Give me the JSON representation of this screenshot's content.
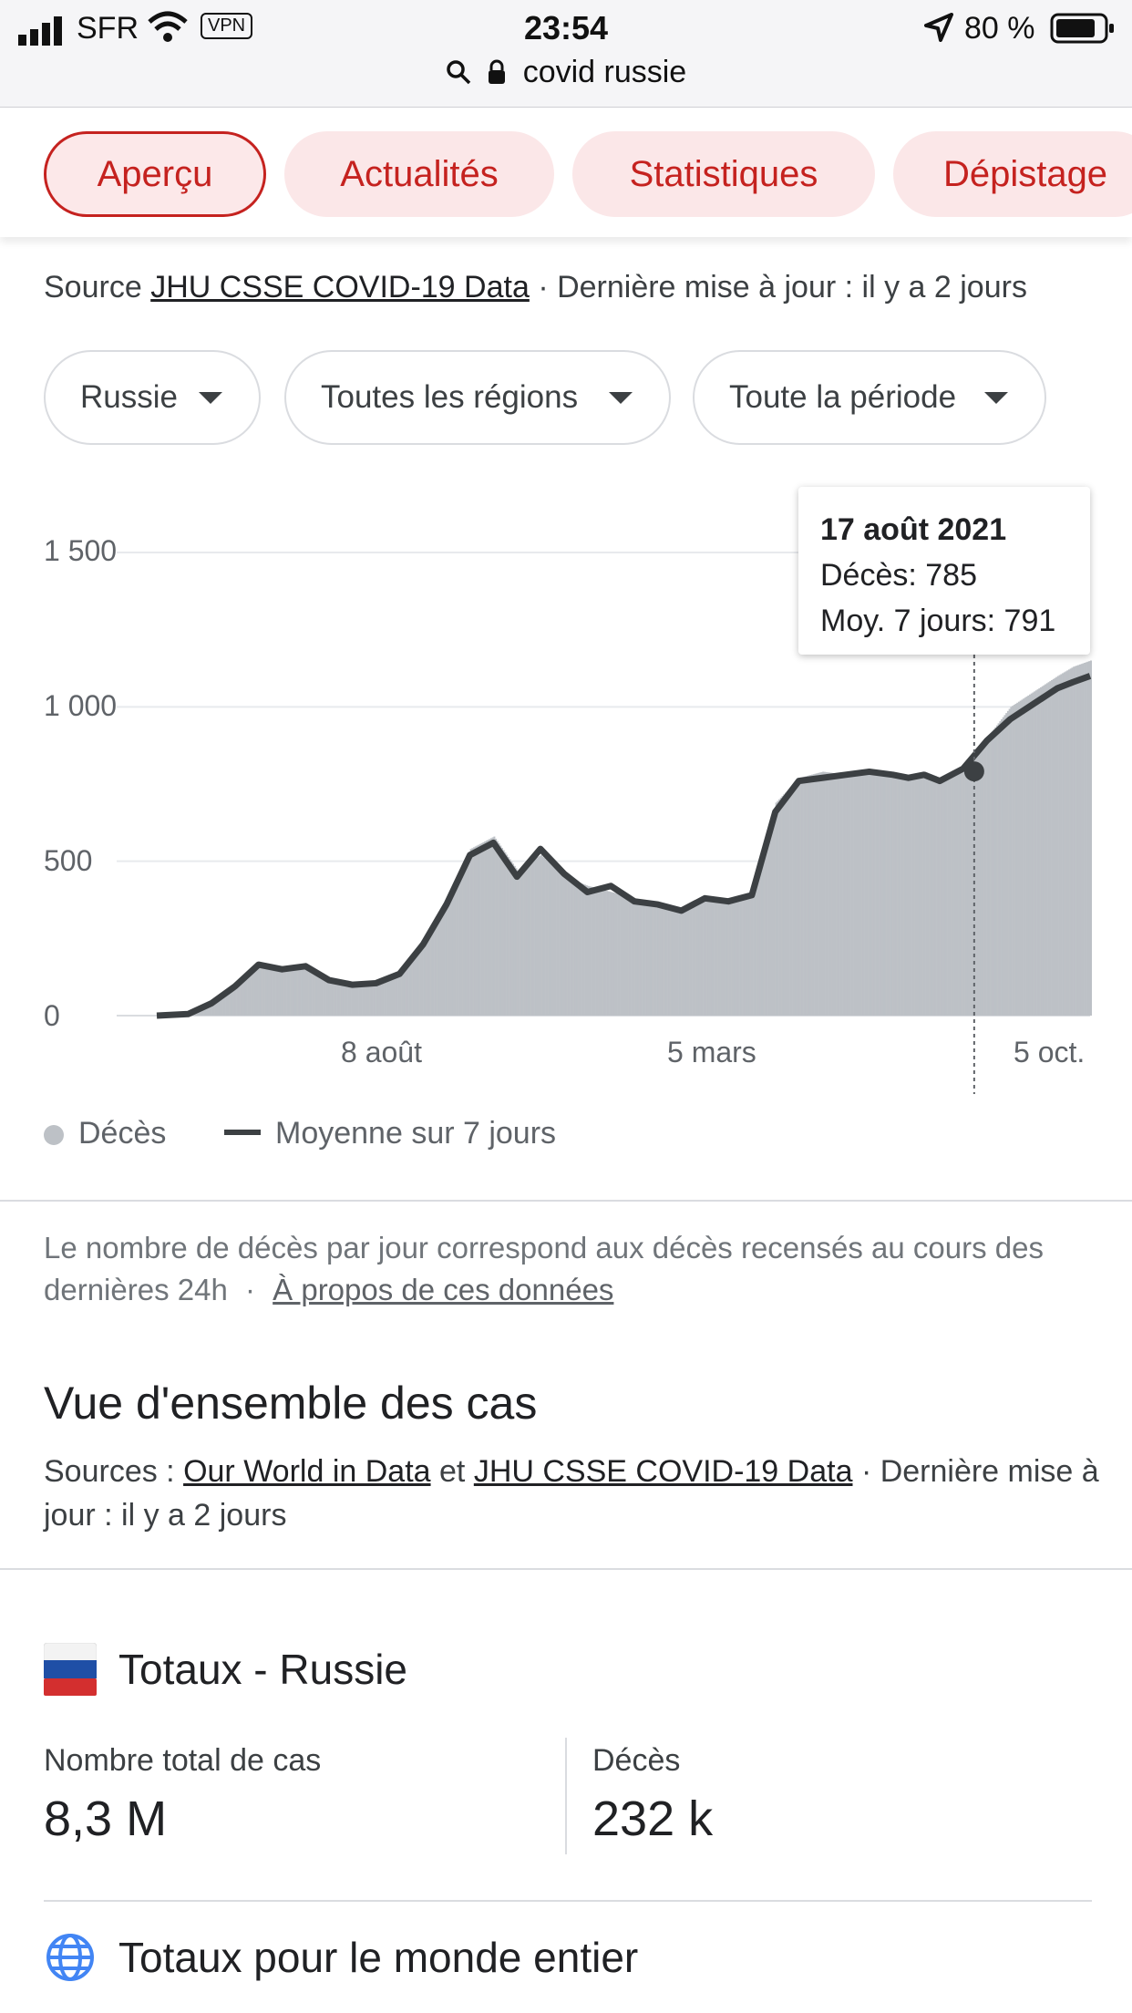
{
  "status_bar": {
    "carrier": "SFR",
    "vpn": "VPN",
    "time": "23:54",
    "battery": "80 %",
    "url": "covid russie"
  },
  "tabs": [
    "Aperçu",
    "Actualités",
    "Statistiques",
    "Dépistage"
  ],
  "source_line": {
    "prefix": "Source",
    "link": "JHU CSSE COVID-19 Data",
    "suffix": "· Dernière mise à jour : il y a 2 jours"
  },
  "filters": {
    "country": "Russie",
    "region": "Toutes les régions",
    "period": "Toute la période"
  },
  "tooltip": {
    "date": "17 août 2021",
    "deaths": "Décès: 785",
    "avg": "Moy. 7 jours: 791"
  },
  "legend": {
    "deaths": "Décès",
    "avg": "Moyenne sur 7 jours"
  },
  "chart_data": {
    "type": "area",
    "yticks": [
      "1 500",
      "1 000",
      "500",
      "0"
    ],
    "ylim": [
      0,
      1500
    ],
    "xticks": [
      "8 août",
      "5 mars",
      "5 oct."
    ],
    "x_range_days": [
      0,
      596
    ],
    "series": [
      {
        "name": "Décès",
        "style": "bars",
        "color": "#bdc1c6",
        "x": [
          0,
          20,
          35,
          50,
          65,
          80,
          95,
          110,
          125,
          140,
          155,
          170,
          185,
          200,
          215,
          230,
          245,
          260,
          275,
          290,
          305,
          320,
          335,
          350,
          365,
          380,
          395,
          410,
          425,
          440,
          455,
          470,
          480,
          490,
          500,
          515,
          530,
          545,
          560,
          575,
          585,
          596
        ],
        "y": [
          0,
          5,
          40,
          100,
          160,
          150,
          165,
          120,
          105,
          110,
          140,
          250,
          380,
          540,
          580,
          470,
          520,
          450,
          420,
          400,
          380,
          360,
          350,
          380,
          370,
          400,
          690,
          770,
          790,
          780,
          795,
          780,
          780,
          790,
          770,
          790,
          900,
          1000,
          1050,
          1100,
          1130,
          1150
        ]
      },
      {
        "name": "Moyenne sur 7 jours",
        "style": "line",
        "color": "#3c4043",
        "x": [
          0,
          20,
          35,
          50,
          65,
          80,
          95,
          110,
          125,
          140,
          155,
          170,
          185,
          200,
          215,
          230,
          245,
          260,
          275,
          290,
          305,
          320,
          335,
          350,
          365,
          380,
          395,
          410,
          425,
          440,
          455,
          470,
          480,
          490,
          500,
          515,
          530,
          545,
          560,
          575,
          585,
          596
        ],
        "y": [
          0,
          5,
          40,
          95,
          165,
          150,
          160,
          115,
          100,
          105,
          135,
          230,
          360,
          520,
          560,
          450,
          540,
          460,
          400,
          420,
          370,
          360,
          340,
          380,
          370,
          390,
          660,
          760,
          770,
          780,
          790,
          780,
          770,
          780,
          760,
          800,
          890,
          960,
          1010,
          1060,
          1080,
          1100
        ]
      }
    ],
    "highlight": {
      "x": 522,
      "y": 791
    }
  },
  "note": {
    "text": "Le nombre de décès par jour correspond aux décès recensés au cours des dernières 24h",
    "sep": "·",
    "link": "À propos de ces données"
  },
  "overview": {
    "title": "Vue d'ensemble des cas",
    "sources_prefix": "Sources :",
    "link1": "Our World in Data",
    "and": "et",
    "link2": "JHU CSSE COVID-19 Data",
    "suffix": "· Dernière mise à jour : il y a 2 jours"
  },
  "totals": {
    "title": "Totaux - Russie",
    "cases_label": "Nombre total de cas",
    "cases_value": "8,3 M",
    "deaths_label": "Décès",
    "deaths_value": "232 k"
  },
  "world": {
    "title": "Totaux pour le monde entier"
  }
}
